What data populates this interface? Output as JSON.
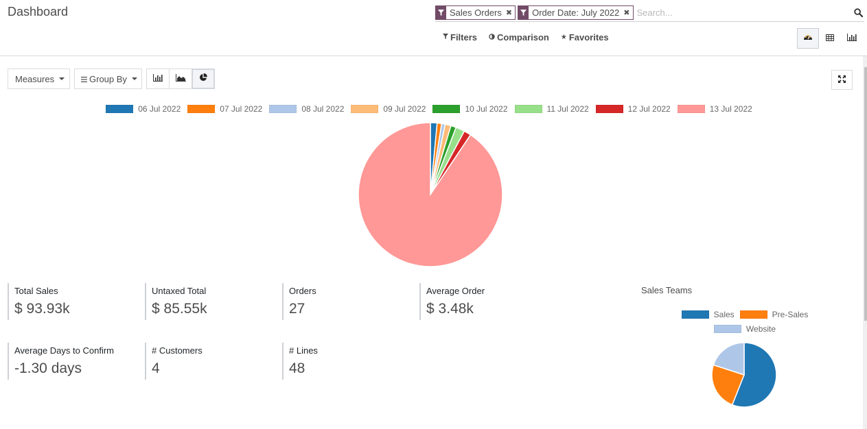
{
  "page": {
    "title": "Dashboard"
  },
  "search": {
    "facets": [
      {
        "icon": "filter-icon",
        "label": "Sales Orders"
      },
      {
        "icon": "filter-icon",
        "label": "Order Date: July 2022"
      }
    ],
    "placeholder": "Search...",
    "value": ""
  },
  "filter_bar": {
    "filters_label": "Filters",
    "comparison_label": "Comparison",
    "favorites_label": "Favorites"
  },
  "views": [
    {
      "name": "dashboard",
      "icon": "tachometer-icon",
      "active": true
    },
    {
      "name": "pivot",
      "icon": "table-icon",
      "active": false
    },
    {
      "name": "graph",
      "icon": "bar-chart-icon",
      "active": false
    }
  ],
  "toolbar": {
    "measures_label": "Measures",
    "group_by_label": "Group By",
    "chart_types": [
      {
        "name": "bar",
        "icon": "bar-chart-icon",
        "active": false
      },
      {
        "name": "line",
        "icon": "area-chart-icon",
        "active": false
      },
      {
        "name": "pie",
        "icon": "pie-chart-icon",
        "active": true
      }
    ]
  },
  "chart_data": [
    {
      "type": "pie",
      "title": "",
      "categories": [
        "06 Jul 2022",
        "07 Jul 2022",
        "08 Jul 2022",
        "09 Jul 2022",
        "10 Jul 2022",
        "11 Jul 2022",
        "12 Jul 2022",
        "13 Jul 2022"
      ],
      "values": [
        1.5,
        1.0,
        0.8,
        1.3,
        1.2,
        2.0,
        1.6,
        90.6
      ],
      "colors": [
        "#1f77b4",
        "#ff7f0e",
        "#aec7e8",
        "#ffbb78",
        "#2ca02c",
        "#98df8a",
        "#d62728",
        "#ff9896"
      ],
      "legend_position": "top",
      "unit": "% of total (estimated)"
    },
    {
      "type": "pie",
      "title": "Sales Teams",
      "categories": [
        "Sales",
        "Pre-Sales",
        "Website"
      ],
      "values": [
        56,
        24,
        20
      ],
      "colors": [
        "#1f77b4",
        "#ff7f0e",
        "#aec7e8"
      ],
      "legend_position": "top",
      "unit": "% of total (estimated)"
    }
  ],
  "kpis": [
    {
      "label": "Total Sales",
      "value": "$ 93.93k"
    },
    {
      "label": "Untaxed Total",
      "value": "$ 85.55k"
    },
    {
      "label": "Orders",
      "value": "27"
    },
    {
      "label": "Average Order",
      "value": "$ 3.48k"
    },
    {
      "label": "Average Days to Confirm",
      "value": "-1.30 days"
    },
    {
      "label": "# Customers",
      "value": "4"
    },
    {
      "label": "# Lines",
      "value": "48"
    }
  ],
  "sales_teams": {
    "title": "Sales Teams"
  },
  "colors": {
    "facet": "#714b67",
    "border": "#dcdcdc",
    "kpi_rule": "#cdd0d5"
  }
}
